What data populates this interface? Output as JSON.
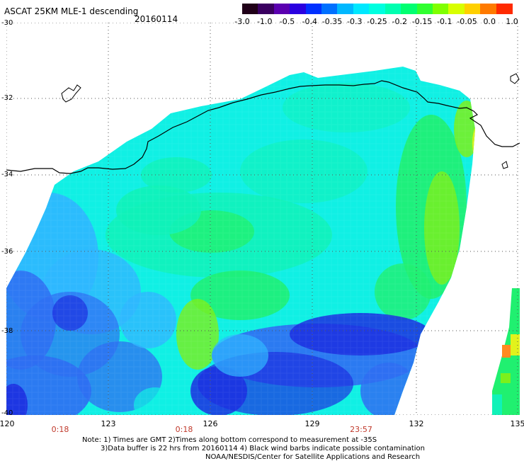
{
  "header": {
    "title": "ASCAT 25KM MLE-1 descending",
    "date": "20160114"
  },
  "colorbar": {
    "colors": [
      "#200018",
      "#3a0060",
      "#5b00b0",
      "#2a00e0",
      "#0030ff",
      "#0070ff",
      "#00b8ff",
      "#00e8ff",
      "#00ffe0",
      "#00ffb0",
      "#00ff70",
      "#30ff30",
      "#80ff00",
      "#d8ff00",
      "#ffd000",
      "#ff7a00",
      "#ff2a00"
    ],
    "labels": [
      "-3.0",
      "-1.0",
      "-0.5",
      "-0.4",
      "-0.35",
      "-0.3",
      "-0.25",
      "-0.2",
      "-0.15",
      "-0.1",
      "-0.05",
      "0.0",
      "1.0"
    ]
  },
  "map": {
    "lat_labels": [
      "-30",
      "-32",
      "-34",
      "-36",
      "-38",
      "-40"
    ],
    "lon_labels": [
      "120",
      "123",
      "126",
      "129",
      "132",
      "135"
    ],
    "time_labels": [
      "0:18",
      "0:18",
      "23:57"
    ],
    "lat_range": [
      -30,
      -40
    ],
    "lon_range": [
      120,
      135
    ],
    "colors": {
      "deep_blue": "#1c2fe0",
      "blue": "#2f6df2",
      "sky": "#2fb6ff",
      "cyan": "#10f0e4",
      "aqua": "#10f2b8",
      "green": "#20f070",
      "lime": "#7cf01c",
      "yellow": "#e2f21c",
      "orange": "#ff8a20",
      "coast": "#000000",
      "grid": "#555555"
    }
  },
  "notes": {
    "line1": "Note: 1) Times are GMT 2)Times along bottom correspond to measurement at -35S",
    "line2": "3)Data buffer is 22 hrs from 20160114 4) Black wind barbs indicate possible contamination",
    "line3": "NOAA/NESDIS/Center for Satellite Applications and Research"
  }
}
